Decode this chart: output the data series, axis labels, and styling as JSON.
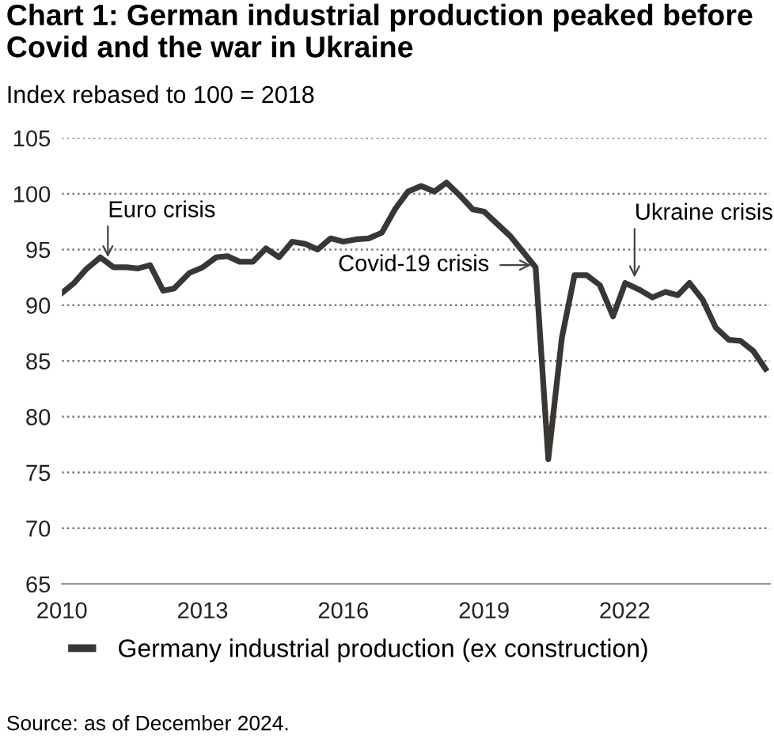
{
  "chart_data": {
    "type": "line",
    "title": "Chart 1: German industrial production peaked before\nCovid and the war in Ukraine",
    "subtitle": "Index rebased to 100 = 2018",
    "x": [
      2010.0,
      2010.26,
      2010.51,
      2010.82,
      2011.1,
      2011.38,
      2011.62,
      2011.88,
      2012.16,
      2012.39,
      2012.72,
      2013.0,
      2013.29,
      2013.53,
      2013.79,
      2014.07,
      2014.35,
      2014.63,
      2014.91,
      2015.19,
      2015.45,
      2015.73,
      2016.0,
      2016.26,
      2016.54,
      2016.82,
      2017.1,
      2017.38,
      2017.66,
      2017.94,
      2018.2,
      2018.47,
      2018.76,
      2019.0,
      2019.28,
      2019.56,
      2019.85,
      2020.1,
      2020.37,
      2020.66,
      2020.93,
      2021.19,
      2021.47,
      2021.75,
      2022.01,
      2022.31,
      2022.59,
      2022.87,
      2023.13,
      2023.38,
      2023.66,
      2023.94,
      2024.22,
      2024.47,
      2024.74,
      2025.0
    ],
    "series": [
      {
        "name": "Germany industrial production (ex construction)",
        "color": "#3a3633",
        "values": [
          91.1,
          92.0,
          93.2,
          94.3,
          93.4,
          93.4,
          93.3,
          93.6,
          91.3,
          91.5,
          92.9,
          93.4,
          94.3,
          94.4,
          93.9,
          93.9,
          95.1,
          94.3,
          95.7,
          95.5,
          95.0,
          96.0,
          95.7,
          95.9,
          96.0,
          96.5,
          98.6,
          100.2,
          100.7,
          100.2,
          101.0,
          99.9,
          98.6,
          98.4,
          97.3,
          96.2,
          94.7,
          93.4,
          76.2,
          87.1,
          92.7,
          92.7,
          91.8,
          89.0,
          92.0,
          91.4,
          90.7,
          91.2,
          90.9,
          92.0,
          90.5,
          88.0,
          86.9,
          86.8,
          85.9,
          84.3
        ]
      }
    ],
    "xlim": [
      2010,
      2025.1
    ],
    "ylim": [
      65,
      105
    ],
    "xticks": [
      2010,
      2013,
      2016,
      2019,
      2022
    ],
    "yticks": [
      65,
      70,
      75,
      80,
      85,
      90,
      95,
      100,
      105
    ],
    "grid": "y",
    "legend": "bottom",
    "line_style": "solid",
    "marker": "none",
    "annotations": [
      {
        "text": "Euro crisis",
        "x": 2010.98,
        "y": 94.1
      },
      {
        "text": "Covid-19 crisis",
        "x": 2020.05,
        "y": 93.6
      },
      {
        "text": "Ukraine crisis",
        "x": 2022.21,
        "y": 92.3
      },
      "Source: as of December 2024."
    ]
  }
}
